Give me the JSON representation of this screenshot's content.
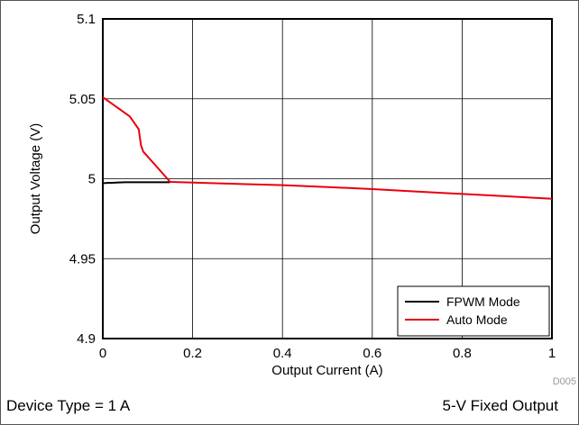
{
  "chart_data": {
    "type": "line",
    "xlabel": "Output Current (A)",
    "ylabel": "Output Voltage (V)",
    "xlim": [
      0,
      1
    ],
    "ylim": [
      4.9,
      5.1
    ],
    "x_ticks": [
      "0",
      "0.2",
      "0.4",
      "0.6",
      "0.8",
      "1"
    ],
    "y_ticks": [
      "4.9",
      "4.95",
      "5",
      "5.05",
      "5.1"
    ],
    "grid": true,
    "legend_position": "bottom-right",
    "series": [
      {
        "name": "FPWM Mode",
        "color": "#000000",
        "x": [
          0,
          0.01,
          0.03,
          0.05,
          0.08,
          0.1,
          0.15
        ],
        "y": [
          4.9972,
          4.9974,
          4.9976,
          4.9978,
          4.9978,
          4.9978,
          4.9978
        ]
      },
      {
        "name": "Auto Mode",
        "color": "#e8000d",
        "x": [
          0,
          0.03,
          0.06,
          0.08,
          0.085,
          0.09,
          0.15,
          0.2,
          0.3,
          0.4,
          0.5,
          0.6,
          0.7,
          0.8,
          0.9,
          1.0
        ],
        "y": [
          5.051,
          5.045,
          5.039,
          5.031,
          5.021,
          5.017,
          4.998,
          4.9976,
          4.9968,
          4.996,
          4.9948,
          4.9935,
          4.992,
          4.9905,
          4.989,
          4.9875
        ]
      }
    ],
    "annotations": [
      "D005"
    ]
  },
  "footer": {
    "left": "Device Type = 1 A",
    "right": "5-V Fixed Output"
  }
}
